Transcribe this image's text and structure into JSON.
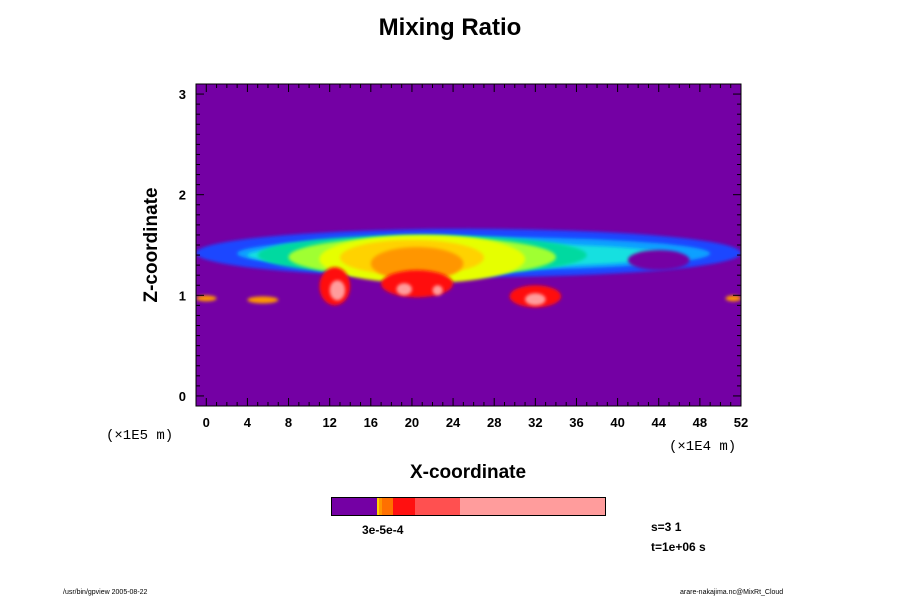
{
  "chart_data": {
    "type": "heatmap",
    "title": "Mixing Ratio",
    "xlabel": "X-coordinate",
    "ylabel": "Z-coordinate",
    "x_scale_note": "(×1E4 m)",
    "y_scale_note": "(×1E5 m)",
    "xlim": [
      -1,
      52
    ],
    "ylim": [
      -0.1,
      3.1
    ],
    "x_ticks": [
      "0",
      "4",
      "8",
      "12",
      "16",
      "20",
      "24",
      "28",
      "32",
      "36",
      "40",
      "44",
      "48",
      "52"
    ],
    "y_ticks": [
      "0",
      "1",
      "2",
      "3"
    ],
    "background_color": "#7400a4",
    "colorbar": {
      "label": "3e-5e-4",
      "segments": [
        {
          "color": "#7400a4",
          "frac": 0.165
        },
        {
          "color": "#ffd200",
          "frac": 0.008
        },
        {
          "color": "#ff9600",
          "frac": 0.012
        },
        {
          "color": "#ff7000",
          "frac": 0.04
        },
        {
          "color": "#ff1010",
          "frac": 0.08
        },
        {
          "color": "#ff5050",
          "frac": 0.165
        },
        {
          "color": "#ff9c9c",
          "frac": 0.53
        }
      ]
    }
  },
  "info": {
    "step": "s=3 1",
    "time": "t=1e+06 s"
  },
  "footer": {
    "left": "/usr/bin/gpview 2005-08-22",
    "right": "arare-nakajima.nc@MixRt_Cloud"
  }
}
